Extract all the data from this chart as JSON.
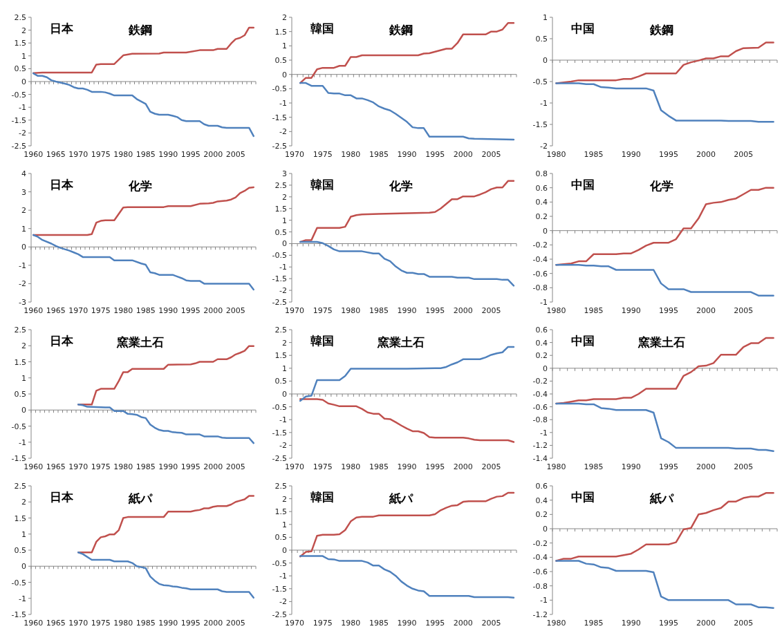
{
  "chart_data": [
    {
      "type": "line",
      "title": "日本",
      "subtitle": "鉄鋼",
      "xlim": [
        1959.5,
        2009.5
      ],
      "xticks": [
        1960,
        1965,
        1970,
        1975,
        1980,
        1985,
        1990,
        1995,
        2000,
        2005
      ],
      "ylim": [
        -2.5,
        2.5
      ],
      "yticks": [
        -2.5,
        -2,
        -1.5,
        -1,
        -0.5,
        0,
        0.5,
        1,
        1.5,
        2,
        2.5
      ],
      "series": [
        {
          "color": "#c0504d",
          "x": [
            1960,
            1962,
            1973,
            1974,
            1975,
            1978,
            1980,
            1982,
            1988,
            1989,
            1994,
            1997,
            2000,
            2001,
            2003,
            2004,
            2005,
            2006,
            2007,
            2008,
            2009
          ],
          "values": [
            0.33,
            0.35,
            0.35,
            0.66,
            0.68,
            0.68,
            1.02,
            1.08,
            1.09,
            1.13,
            1.13,
            1.22,
            1.22,
            1.27,
            1.27,
            1.48,
            1.65,
            1.7,
            1.8,
            2.1,
            2.1
          ]
        },
        {
          "color": "#4f81bd",
          "x": [
            1960,
            1961,
            1962,
            1963,
            1964,
            1965,
            1967,
            1968,
            1969,
            1970,
            1971,
            1972,
            1973,
            1975,
            1976,
            1977,
            1978,
            1982,
            1983,
            1985,
            1986,
            1987,
            1988,
            1990,
            1991,
            1992,
            1993,
            1994,
            1997,
            1998,
            1999,
            2001,
            2002,
            2003,
            2008,
            2009
          ],
          "values": [
            0.32,
            0.22,
            0.22,
            0.17,
            0.05,
            0.0,
            -0.08,
            -0.13,
            -0.22,
            -0.27,
            -0.27,
            -0.32,
            -0.4,
            -0.4,
            -0.42,
            -0.47,
            -0.54,
            -0.54,
            -0.68,
            -0.87,
            -1.17,
            -1.25,
            -1.29,
            -1.29,
            -1.33,
            -1.38,
            -1.5,
            -1.54,
            -1.54,
            -1.66,
            -1.72,
            -1.72,
            -1.78,
            -1.8,
            -1.8,
            -2.12
          ]
        }
      ]
    },
    {
      "type": "line",
      "title": "韓国",
      "subtitle": "鉄鋼",
      "xlim": [
        1969.5,
        2009.5
      ],
      "xticks": [
        1970,
        1975,
        1980,
        1985,
        1990,
        1995,
        2000,
        2005
      ],
      "ylim": [
        -2.5,
        2
      ],
      "yticks": [
        -2.5,
        -2,
        -1.5,
        -1,
        -0.5,
        0,
        0.5,
        1,
        1.5,
        2
      ],
      "series": [
        {
          "color": "#c0504d",
          "x": [
            1971,
            1972,
            1973,
            1974,
            1975,
            1977,
            1978,
            1979,
            1980,
            1981,
            1982,
            1992,
            1993,
            1994,
            1997,
            1998,
            1999,
            2000,
            2004,
            2005,
            2006,
            2007,
            2008,
            2009
          ],
          "values": [
            -0.3,
            -0.12,
            -0.12,
            0.18,
            0.23,
            0.23,
            0.3,
            0.3,
            0.61,
            0.61,
            0.67,
            0.67,
            0.73,
            0.74,
            0.9,
            0.9,
            1.1,
            1.4,
            1.4,
            1.5,
            1.5,
            1.57,
            1.8,
            1.8
          ]
        },
        {
          "color": "#4f81bd",
          "x": [
            1971,
            1972,
            1973,
            1975,
            1976,
            1977,
            1978,
            1979,
            1980,
            1981,
            1982,
            1983,
            1984,
            1985,
            1986,
            1987,
            1988,
            1989,
            1990,
            1991,
            1992,
            1993,
            1994,
            2000,
            2001,
            2002,
            2009
          ],
          "values": [
            -0.3,
            -0.3,
            -0.4,
            -0.4,
            -0.65,
            -0.67,
            -0.67,
            -0.73,
            -0.73,
            -0.84,
            -0.84,
            -0.9,
            -0.98,
            -1.12,
            -1.2,
            -1.26,
            -1.38,
            -1.52,
            -1.66,
            -1.85,
            -1.88,
            -1.88,
            -2.18,
            -2.18,
            -2.24,
            -2.25,
            -2.28
          ]
        }
      ]
    },
    {
      "type": "line",
      "title": "中国",
      "subtitle": "鉄鋼",
      "xlim": [
        1979.5,
        2009.5
      ],
      "xticks": [
        1980,
        1985,
        1990,
        1995,
        2000,
        2005
      ],
      "ylim": [
        -2,
        1
      ],
      "yticks": [
        -2,
        -1.5,
        -1,
        -0.5,
        0,
        0.5,
        1
      ],
      "series": [
        {
          "color": "#c0504d",
          "x": [
            1980,
            1981,
            1982,
            1983,
            1988,
            1989,
            1990,
            1991,
            1992,
            1996,
            1997,
            1998,
            1999,
            2000,
            2001,
            2002,
            2003,
            2004,
            2005,
            2007,
            2008,
            2009
          ],
          "values": [
            -0.54,
            -0.52,
            -0.5,
            -0.47,
            -0.47,
            -0.44,
            -0.44,
            -0.38,
            -0.31,
            -0.31,
            -0.11,
            -0.05,
            -0.01,
            0.04,
            0.04,
            0.09,
            0.09,
            0.21,
            0.28,
            0.29,
            0.41,
            0.41
          ]
        },
        {
          "color": "#4f81bd",
          "x": [
            1980,
            1983,
            1984,
            1985,
            1986,
            1987,
            1988,
            1992,
            1993,
            1994,
            1995,
            1996,
            2002,
            2003,
            2006,
            2007,
            2009
          ],
          "values": [
            -0.54,
            -0.54,
            -0.56,
            -0.56,
            -0.63,
            -0.64,
            -0.66,
            -0.66,
            -0.71,
            -1.17,
            -1.3,
            -1.41,
            -1.41,
            -1.42,
            -1.42,
            -1.44,
            -1.44
          ]
        }
      ]
    },
    {
      "type": "line",
      "title": "日本",
      "subtitle": "化学",
      "xlim": [
        1959.5,
        2009.5
      ],
      "xticks": [
        1960,
        1965,
        1970,
        1975,
        1980,
        1985,
        1990,
        1995,
        2000,
        2005
      ],
      "ylim": [
        -3,
        4
      ],
      "yticks": [
        -3,
        -2,
        -1,
        0,
        1,
        2,
        3,
        4
      ],
      "series": [
        {
          "color": "#c0504d",
          "x": [
            1960,
            1972,
            1973,
            1974,
            1975,
            1976,
            1978,
            1979,
            1980,
            1981,
            1989,
            1990,
            1995,
            1997,
            1999,
            2000,
            2001,
            2003,
            2004,
            2005,
            2006,
            2007,
            2008,
            2009
          ],
          "values": [
            0.65,
            0.65,
            0.7,
            1.32,
            1.42,
            1.45,
            1.45,
            1.8,
            2.15,
            2.17,
            2.17,
            2.22,
            2.22,
            2.35,
            2.37,
            2.4,
            2.48,
            2.52,
            2.58,
            2.7,
            2.93,
            3.05,
            3.22,
            3.25
          ]
        },
        {
          "color": "#4f81bd",
          "x": [
            1960,
            1961,
            1962,
            1964,
            1965,
            1966,
            1968,
            1969,
            1970,
            1971,
            1977,
            1978,
            1982,
            1984,
            1985,
            1986,
            1987,
            1988,
            1991,
            1993,
            1994,
            1995,
            1997,
            1998,
            2008,
            2009
          ],
          "values": [
            0.65,
            0.55,
            0.38,
            0.18,
            0.05,
            -0.05,
            -0.2,
            -0.3,
            -0.4,
            -0.55,
            -0.55,
            -0.73,
            -0.73,
            -0.9,
            -0.97,
            -1.38,
            -1.43,
            -1.52,
            -1.52,
            -1.7,
            -1.82,
            -1.85,
            -1.85,
            -2.0,
            -2.0,
            -2.32
          ]
        }
      ]
    },
    {
      "type": "line",
      "title": "韓国",
      "subtitle": "化学",
      "xlim": [
        1969.5,
        2009.5
      ],
      "xticks": [
        1970,
        1975,
        1980,
        1985,
        1990,
        1995,
        2000,
        2005
      ],
      "ylim": [
        -2.5,
        3
      ],
      "yticks": [
        -2.5,
        -2,
        -1.5,
        -1,
        -0.5,
        0,
        0.5,
        1,
        1.5,
        2,
        2.5,
        3
      ],
      "series": [
        {
          "color": "#c0504d",
          "x": [
            1971,
            1972,
            1973,
            1974,
            1978,
            1979,
            1980,
            1981,
            1982,
            1985,
            1994,
            1995,
            1996,
            1997,
            1998,
            1999,
            2000,
            2002,
            2003,
            2004,
            2005,
            2006,
            2007,
            2008,
            2009
          ],
          "values": [
            0.07,
            0.15,
            0.15,
            0.67,
            0.67,
            0.72,
            1.15,
            1.22,
            1.25,
            1.27,
            1.32,
            1.35,
            1.5,
            1.7,
            1.9,
            1.9,
            2.02,
            2.02,
            2.1,
            2.2,
            2.33,
            2.4,
            2.4,
            2.68,
            2.68
          ]
        },
        {
          "color": "#4f81bd",
          "x": [
            1971,
            1974,
            1975,
            1976,
            1977,
            1978,
            1982,
            1984,
            1985,
            1986,
            1987,
            1988,
            1989,
            1990,
            1991,
            1992,
            1993,
            1994,
            1998,
            1999,
            2001,
            2002,
            2006,
            2007,
            2008,
            2009
          ],
          "values": [
            0.07,
            0.07,
            0.02,
            -0.1,
            -0.25,
            -0.33,
            -0.33,
            -0.42,
            -0.42,
            -0.65,
            -0.75,
            -0.98,
            -1.15,
            -1.25,
            -1.25,
            -1.3,
            -1.3,
            -1.42,
            -1.42,
            -1.46,
            -1.46,
            -1.52,
            -1.52,
            -1.55,
            -1.55,
            -1.8
          ]
        }
      ]
    },
    {
      "type": "line",
      "title": "中国",
      "subtitle": "化学",
      "xlim": [
        1979.5,
        2009.5
      ],
      "xticks": [
        1980,
        1985,
        1990,
        1995,
        2000,
        2005
      ],
      "ylim": [
        -1,
        0.8
      ],
      "yticks": [
        -1,
        -0.8,
        -0.6,
        -0.4,
        -0.2,
        0,
        0.2,
        0.4,
        0.6,
        0.8
      ],
      "series": [
        {
          "color": "#c0504d",
          "x": [
            1980,
            1981,
            1982,
            1983,
            1984,
            1985,
            1988,
            1989,
            1990,
            1991,
            1992,
            1993,
            1995,
            1996,
            1997,
            1998,
            1999,
            2000,
            2001,
            2002,
            2003,
            2004,
            2005,
            2006,
            2007,
            2008,
            2009
          ],
          "values": [
            -0.48,
            -0.47,
            -0.46,
            -0.43,
            -0.43,
            -0.33,
            -0.33,
            -0.32,
            -0.32,
            -0.27,
            -0.21,
            -0.17,
            -0.17,
            -0.12,
            0.03,
            0.03,
            0.17,
            0.37,
            0.39,
            0.4,
            0.43,
            0.45,
            0.51,
            0.57,
            0.57,
            0.6,
            0.6
          ]
        },
        {
          "color": "#4f81bd",
          "x": [
            1980,
            1983,
            1984,
            1985,
            1986,
            1987,
            1988,
            1993,
            1994,
            1995,
            1997,
            1998,
            2006,
            2007,
            2009
          ],
          "values": [
            -0.48,
            -0.48,
            -0.49,
            -0.49,
            -0.5,
            -0.5,
            -0.55,
            -0.55,
            -0.74,
            -0.82,
            -0.82,
            -0.86,
            -0.86,
            -0.91,
            -0.91
          ]
        }
      ]
    },
    {
      "type": "line",
      "title": "日本",
      "subtitle": "窯業土石",
      "xlim": [
        1959.5,
        2009.5
      ],
      "xticks": [
        1960,
        1965,
        1970,
        1975,
        1980,
        1985,
        1990,
        1995,
        2000,
        2005
      ],
      "ylim": [
        -1.5,
        2.5
      ],
      "yticks": [
        -1.5,
        -1,
        -0.5,
        0,
        0.5,
        1,
        1.5,
        2,
        2.5
      ],
      "series": [
        {
          "color": "#c0504d",
          "x": [
            1970,
            1973,
            1974,
            1975,
            1978,
            1979,
            1980,
            1981,
            1982,
            1989,
            1990,
            1995,
            1996,
            1997,
            2000,
            2001,
            2003,
            2004,
            2005,
            2006,
            2007,
            2008,
            2009
          ],
          "values": [
            0.17,
            0.17,
            0.6,
            0.66,
            0.66,
            0.9,
            1.18,
            1.18,
            1.28,
            1.28,
            1.41,
            1.42,
            1.45,
            1.5,
            1.5,
            1.58,
            1.58,
            1.64,
            1.73,
            1.78,
            1.84,
            1.99,
            1.99
          ]
        },
        {
          "color": "#4f81bd",
          "x": [
            1970,
            1971,
            1972,
            1976,
            1977,
            1978,
            1980,
            1981,
            1982,
            1983,
            1984,
            1985,
            1986,
            1987,
            1988,
            1989,
            1990,
            1991,
            1993,
            1994,
            1997,
            1998,
            2001,
            2002,
            2003,
            2008,
            2009
          ],
          "values": [
            0.17,
            0.15,
            0.1,
            0.08,
            0.08,
            -0.03,
            -0.03,
            -0.12,
            -0.13,
            -0.15,
            -0.22,
            -0.25,
            -0.45,
            -0.55,
            -0.62,
            -0.65,
            -0.65,
            -0.69,
            -0.71,
            -0.76,
            -0.76,
            -0.82,
            -0.82,
            -0.86,
            -0.87,
            -0.87,
            -1.03
          ]
        }
      ]
    },
    {
      "type": "line",
      "title": "韓国",
      "subtitle": "窯業土石",
      "xlim": [
        1969.5,
        2009.5
      ],
      "xticks": [
        1970,
        1975,
        1980,
        1985,
        1990,
        1995,
        2000,
        2005
      ],
      "ylim": [
        -2.5,
        2.5
      ],
      "yticks": [
        -2.5,
        -2,
        -1.5,
        -1,
        -0.5,
        0,
        0.5,
        1,
        1.5,
        2,
        2.5
      ],
      "series": [
        {
          "color": "#c0504d",
          "x": [
            1971,
            1974,
            1975,
            1976,
            1977,
            1978,
            1981,
            1982,
            1983,
            1984,
            1985,
            1986,
            1987,
            1988,
            1989,
            1990,
            1991,
            1992,
            1993,
            1994,
            1995,
            2000,
            2001,
            2002,
            2003,
            2008,
            2009
          ],
          "values": [
            -0.2,
            -0.2,
            -0.23,
            -0.37,
            -0.42,
            -0.48,
            -0.48,
            -0.58,
            -0.72,
            -0.77,
            -0.77,
            -0.96,
            -0.98,
            -1.1,
            -1.23,
            -1.35,
            -1.45,
            -1.45,
            -1.52,
            -1.68,
            -1.7,
            -1.7,
            -1.73,
            -1.78,
            -1.8,
            -1.8,
            -1.87
          ]
        },
        {
          "color": "#4f81bd",
          "x": [
            1971,
            1972,
            1973,
            1974,
            1978,
            1979,
            1980,
            1990,
            1995,
            1996,
            1997,
            1998,
            1999,
            2000,
            2003,
            2004,
            2005,
            2006,
            2007,
            2008,
            2009
          ],
          "values": [
            -0.27,
            -0.1,
            -0.07,
            0.54,
            0.54,
            0.7,
            0.98,
            0.98,
            1.0,
            1.0,
            1.05,
            1.15,
            1.23,
            1.35,
            1.35,
            1.42,
            1.52,
            1.58,
            1.62,
            1.83,
            1.83
          ]
        }
      ]
    },
    {
      "type": "line",
      "title": "中国",
      "subtitle": "窯業土石",
      "xlim": [
        1979.5,
        2009.5
      ],
      "xticks": [
        1980,
        1985,
        1990,
        1995,
        2000,
        2005
      ],
      "ylim": [
        -1.4,
        0.6
      ],
      "yticks": [
        -1.4,
        -1.2,
        -1,
        -0.8,
        -0.6,
        -0.4,
        -0.2,
        0,
        0.2,
        0.4,
        0.6
      ],
      "series": [
        {
          "color": "#c0504d",
          "x": [
            1980,
            1981,
            1982,
            1983,
            1984,
            1985,
            1988,
            1989,
            1990,
            1991,
            1992,
            1996,
            1997,
            1998,
            1999,
            2000,
            2001,
            2002,
            2004,
            2005,
            2006,
            2007,
            2008,
            2009
          ],
          "values": [
            -0.55,
            -0.54,
            -0.52,
            -0.5,
            -0.5,
            -0.48,
            -0.48,
            -0.46,
            -0.46,
            -0.4,
            -0.32,
            -0.32,
            -0.12,
            -0.06,
            0.03,
            0.04,
            0.08,
            0.21,
            0.21,
            0.33,
            0.39,
            0.39,
            0.47,
            0.47
          ]
        },
        {
          "color": "#4f81bd",
          "x": [
            1980,
            1983,
            1984,
            1985,
            1986,
            1987,
            1988,
            1992,
            1993,
            1994,
            1995,
            1996,
            2003,
            2004,
            2006,
            2007,
            2008,
            2009
          ],
          "values": [
            -0.55,
            -0.55,
            -0.56,
            -0.56,
            -0.62,
            -0.63,
            -0.65,
            -0.65,
            -0.69,
            -1.09,
            -1.15,
            -1.24,
            -1.24,
            -1.25,
            -1.25,
            -1.27,
            -1.27,
            -1.29
          ]
        }
      ]
    },
    {
      "type": "line",
      "title": "日本",
      "subtitle": "紙パ",
      "xlim": [
        1959.5,
        2009.5
      ],
      "xticks": [
        1960,
        1965,
        1970,
        1975,
        1980,
        1985,
        1990,
        1995,
        2000,
        2005
      ],
      "ylim": [
        -1.5,
        2.5
      ],
      "yticks": [
        -1.5,
        -1,
        -0.5,
        0,
        0.5,
        1,
        1.5,
        2,
        2.5
      ],
      "series": [
        {
          "color": "#c0504d",
          "x": [
            1970,
            1973,
            1974,
            1975,
            1976,
            1977,
            1978,
            1979,
            1980,
            1981,
            1989,
            1990,
            1995,
            1996,
            1997,
            1998,
            1999,
            2000,
            2001,
            2003,
            2004,
            2005,
            2006,
            2007,
            2008,
            2009
          ],
          "values": [
            0.43,
            0.43,
            0.76,
            0.9,
            0.93,
            0.99,
            0.99,
            1.12,
            1.5,
            1.53,
            1.53,
            1.7,
            1.7,
            1.73,
            1.75,
            1.8,
            1.8,
            1.85,
            1.87,
            1.87,
            1.92,
            2.0,
            2.04,
            2.08,
            2.19,
            2.19
          ]
        },
        {
          "color": "#4f81bd",
          "x": [
            1970,
            1971,
            1973,
            1977,
            1978,
            1981,
            1982,
            1983,
            1984,
            1985,
            1986,
            1987,
            1988,
            1989,
            1990,
            1991,
            1992,
            1993,
            1994,
            1995,
            2001,
            2002,
            2003,
            2008,
            2009
          ],
          "values": [
            0.43,
            0.38,
            0.2,
            0.2,
            0.15,
            0.15,
            0.1,
            0.0,
            -0.03,
            -0.06,
            -0.32,
            -0.45,
            -0.55,
            -0.59,
            -0.6,
            -0.63,
            -0.64,
            -0.67,
            -0.69,
            -0.72,
            -0.72,
            -0.78,
            -0.8,
            -0.8,
            -0.98
          ]
        }
      ]
    },
    {
      "type": "line",
      "title": "韓国",
      "subtitle": "紙パ",
      "xlim": [
        1969.5,
        2009.5
      ],
      "xticks": [
        1970,
        1975,
        1980,
        1985,
        1990,
        1995,
        2000,
        2005
      ],
      "ylim": [
        -2.5,
        2.5
      ],
      "yticks": [
        -2.5,
        -2,
        -1.5,
        -1,
        -0.5,
        0,
        0.5,
        1,
        1.5,
        2,
        2.5
      ],
      "series": [
        {
          "color": "#c0504d",
          "x": [
            1971,
            1972,
            1973,
            1974,
            1975,
            1977,
            1978,
            1979,
            1980,
            1981,
            1982,
            1984,
            1985,
            1994,
            1995,
            1996,
            1997,
            1998,
            1999,
            2000,
            2001,
            2004,
            2005,
            2006,
            2007,
            2008,
            2009
          ],
          "values": [
            -0.25,
            -0.07,
            -0.05,
            0.56,
            0.6,
            0.6,
            0.62,
            0.78,
            1.12,
            1.27,
            1.3,
            1.3,
            1.35,
            1.35,
            1.4,
            1.55,
            1.65,
            1.73,
            1.75,
            1.88,
            1.9,
            1.9,
            2.0,
            2.08,
            2.1,
            2.23,
            2.23
          ]
        },
        {
          "color": "#4f81bd",
          "x": [
            1971,
            1975,
            1976,
            1977,
            1978,
            1982,
            1983,
            1984,
            1985,
            1986,
            1987,
            1988,
            1989,
            1990,
            1991,
            1992,
            1993,
            1994,
            2001,
            2002,
            2008,
            2009
          ],
          "values": [
            -0.23,
            -0.23,
            -0.35,
            -0.36,
            -0.42,
            -0.42,
            -0.48,
            -0.6,
            -0.6,
            -0.75,
            -0.84,
            -1.0,
            -1.22,
            -1.38,
            -1.5,
            -1.57,
            -1.6,
            -1.78,
            -1.78,
            -1.83,
            -1.83,
            -1.85
          ]
        }
      ]
    },
    {
      "type": "line",
      "title": "中国",
      "subtitle": "紙パ",
      "xlim": [
        1979.5,
        2009.5
      ],
      "xticks": [
        1980,
        1985,
        1990,
        1995,
        2000,
        2005
      ],
      "ylim": [
        -1.2,
        0.6
      ],
      "yticks": [
        -1.2,
        -1,
        -0.8,
        -0.6,
        -0.4,
        -0.2,
        0,
        0.2,
        0.4,
        0.6
      ],
      "series": [
        {
          "color": "#c0504d",
          "x": [
            1980,
            1981,
            1982,
            1983,
            1988,
            1989,
            1990,
            1991,
            1992,
            1995,
            1996,
            1997,
            1998,
            1999,
            2000,
            2001,
            2002,
            2003,
            2004,
            2005,
            2006,
            2007,
            2008,
            2009
          ],
          "values": [
            -0.45,
            -0.42,
            -0.42,
            -0.39,
            -0.39,
            -0.37,
            -0.35,
            -0.29,
            -0.22,
            -0.22,
            -0.19,
            -0.01,
            0.01,
            0.2,
            0.22,
            0.26,
            0.29,
            0.38,
            0.38,
            0.43,
            0.45,
            0.45,
            0.5,
            0.5
          ]
        },
        {
          "color": "#4f81bd",
          "x": [
            1980,
            1983,
            1984,
            1985,
            1986,
            1987,
            1988,
            1992,
            1993,
            1994,
            1995,
            2003,
            2004,
            2006,
            2007,
            2008,
            2009
          ],
          "values": [
            -0.45,
            -0.45,
            -0.49,
            -0.5,
            -0.54,
            -0.55,
            -0.59,
            -0.59,
            -0.61,
            -0.95,
            -1.0,
            -1.0,
            -1.06,
            -1.06,
            -1.1,
            -1.1,
            -1.11
          ]
        }
      ]
    }
  ]
}
